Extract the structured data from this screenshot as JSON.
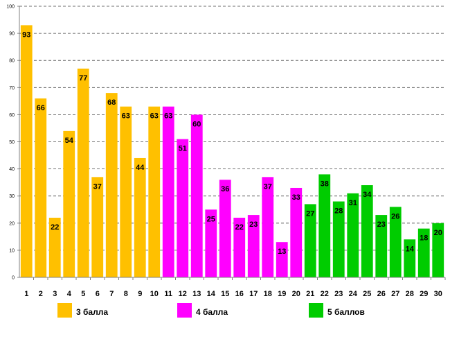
{
  "chart_data": {
    "type": "bar",
    "categories": [
      "1",
      "2",
      "3",
      "4",
      "5",
      "6",
      "7",
      "8",
      "9",
      "10",
      "11",
      "12",
      "13",
      "14",
      "15",
      "16",
      "17",
      "18",
      "19",
      "20",
      "21",
      "22",
      "23",
      "24",
      "25",
      "26",
      "27",
      "28",
      "29",
      "30"
    ],
    "values": [
      93,
      66,
      22,
      54,
      77,
      37,
      68,
      63,
      44,
      63,
      63,
      51,
      60,
      25,
      36,
      22,
      23,
      37,
      13,
      33,
      27,
      38,
      28,
      31,
      34,
      23,
      26,
      14,
      18,
      20
    ],
    "groups": [
      {
        "name": "3 балла",
        "color": "#FFC000",
        "from": 1,
        "to": 10
      },
      {
        "name": "4 балла",
        "color": "#FF00FF",
        "from": 11,
        "to": 20
      },
      {
        "name": "5 баллов",
        "color": "#00CC00",
        "from": 21,
        "to": 30
      }
    ],
    "yticks": [
      "0",
      "10",
      "20",
      "30",
      "40",
      "50",
      "60",
      "70",
      "80",
      "90",
      "100"
    ],
    "ylim": [
      0,
      100
    ],
    "grid": true,
    "title": "",
    "xlabel": "",
    "ylabel": "",
    "legend_position": "bottom"
  }
}
